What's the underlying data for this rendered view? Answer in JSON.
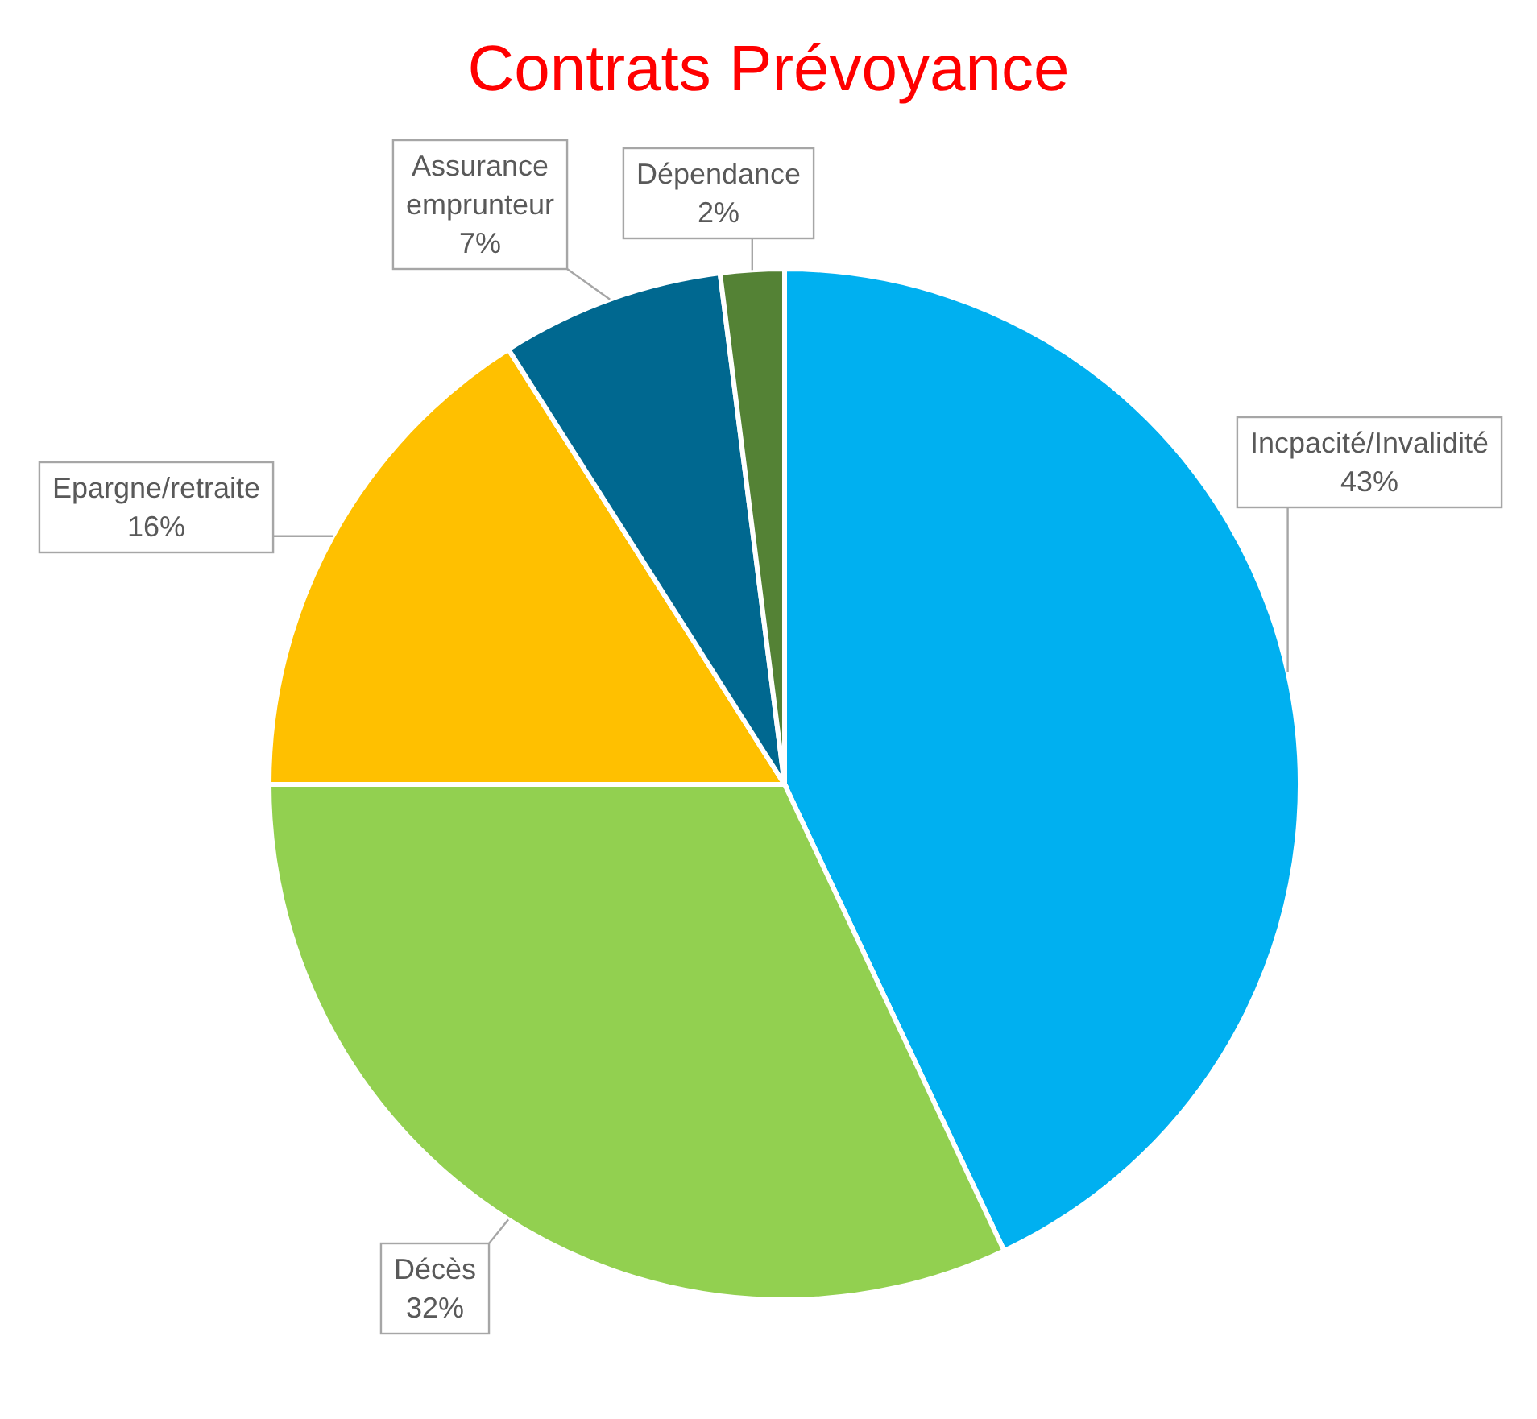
{
  "chart_data": {
    "type": "pie",
    "title": "Contrats Prévoyance",
    "categories": [
      "Incpacité/Invalidité",
      "Décès",
      "Epargne/retraite",
      "Assurance emprunteur",
      "Dépendance"
    ],
    "values": [
      43,
      32,
      16,
      7,
      2
    ],
    "value_labels": [
      "43%",
      "32%",
      "16%",
      "7%",
      "2%"
    ],
    "colors": [
      "#00b0f0",
      "#92d050",
      "#ffc000",
      "#006890",
      "#548235"
    ]
  }
}
